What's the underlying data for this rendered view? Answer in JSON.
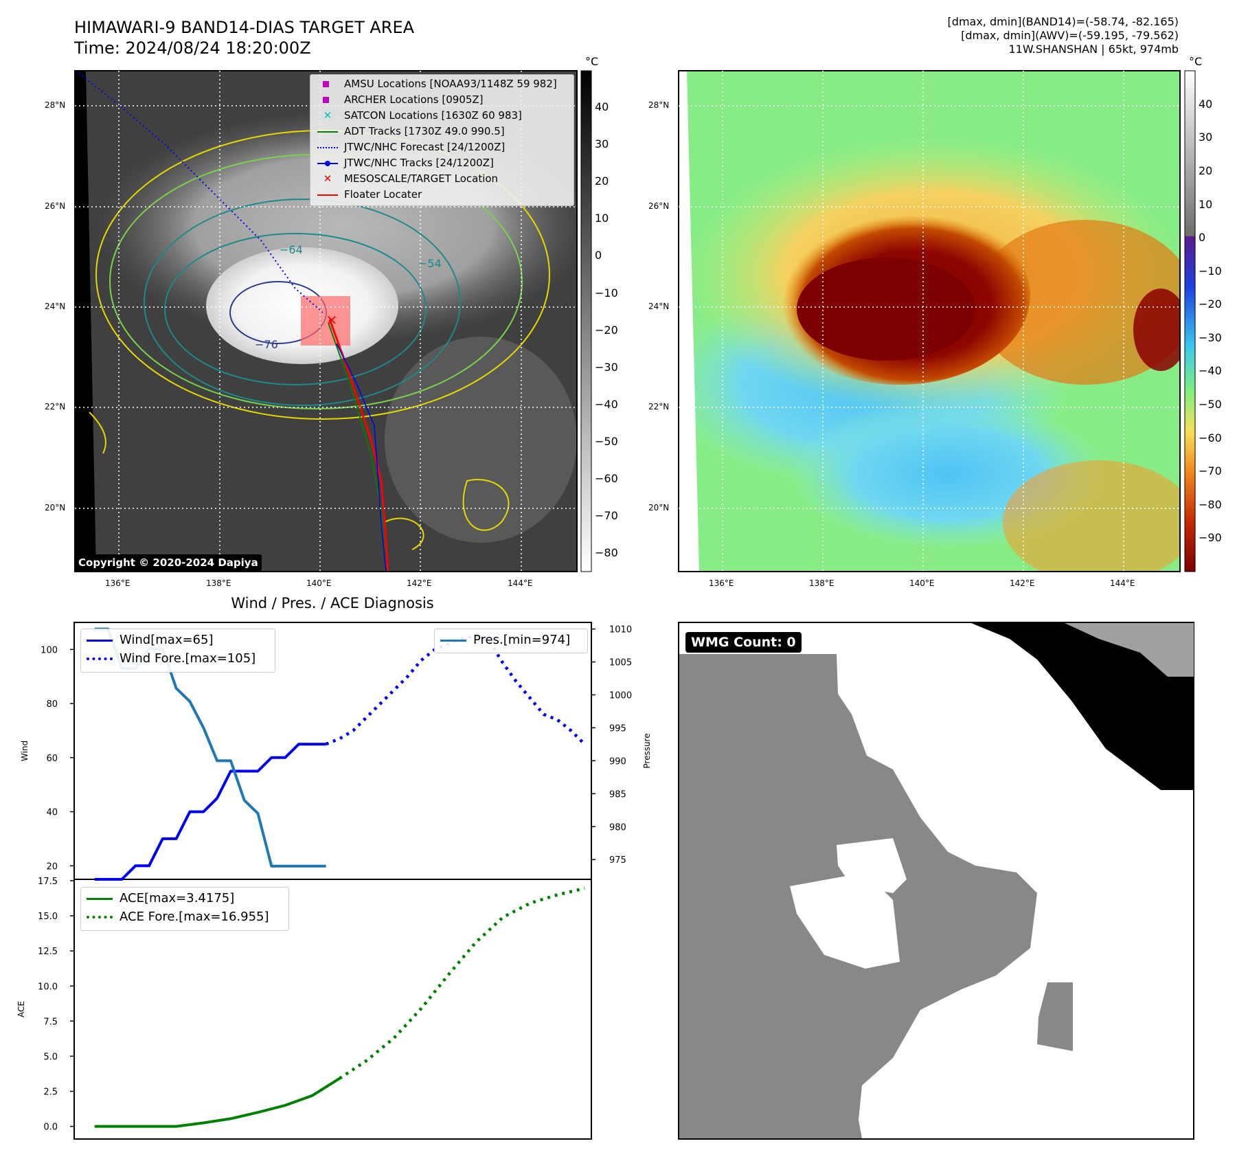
{
  "header": {
    "title": "HIMAWARI-9 BAND14-DIAS TARGET AREA",
    "time": "Time: 2024/08/24 18:20:00Z",
    "meta_line1": "[dmax, dmin](BAND14)=(-58.74, -82.165)",
    "meta_line2": "[dmax, dmin](AWV)=(-59.195, -79.562)",
    "meta_line3": "11W.SHANSHAN | 65kt, 974mb"
  },
  "map_ir": {
    "unit": "°C",
    "colorbar_ticks": [
      "40",
      "30",
      "20",
      "10",
      "0",
      "−10",
      "−20",
      "−30",
      "−40",
      "−50",
      "−60",
      "−70",
      "−80"
    ],
    "lat_labels": [
      "28°N",
      "26°N",
      "24°N",
      "22°N",
      "20°N"
    ],
    "lon_labels": [
      "136°E",
      "138°E",
      "140°E",
      "142°E",
      "144°E"
    ],
    "contour_labels": [
      "−64",
      "−54",
      "−76"
    ],
    "copyright": "Copyright © 2020-2024 Dapiya",
    "legend": [
      {
        "label": "AMSU Locations [NOAA93/1148Z 59 982]",
        "color": "#c000c0",
        "marker": "square"
      },
      {
        "label": "ARCHER Locations [0905Z]",
        "color": "#c000c0",
        "marker": "square"
      },
      {
        "label": "SATCON Locations [1630Z 60 983]",
        "color": "#00c0c0",
        "marker": "x"
      },
      {
        "label": "ADT Tracks [1730Z 49.0 990.5]",
        "color": "#008000",
        "marker": "line"
      },
      {
        "label": "JTWC/NHC Forecast [24/1200Z]",
        "color": "#0000ff",
        "marker": "dotted"
      },
      {
        "label": "JTWC/NHC Tracks [24/1200Z]",
        "color": "#0000ff",
        "marker": "line-dot"
      },
      {
        "label": "MESOSCALE/TARGET Location",
        "color": "#ff0000",
        "marker": "x"
      },
      {
        "label": "Floater Locater",
        "color": "#ff0000",
        "marker": "line"
      }
    ]
  },
  "map_awv": {
    "unit": "°C",
    "colorbar_ticks": [
      "40",
      "30",
      "20",
      "10",
      "0",
      "−10",
      "−20",
      "−30",
      "−40",
      "−50",
      "−60",
      "−70",
      "−80",
      "−90"
    ],
    "lat_labels": [
      "28°N",
      "26°N",
      "24°N",
      "22°N",
      "20°N"
    ],
    "lon_labels": [
      "136°E",
      "138°E",
      "140°E",
      "142°E",
      "144°E"
    ]
  },
  "wmg": {
    "label": "WMG Count: 0"
  },
  "chart_data": [
    {
      "type": "line",
      "title": "Wind / Pres. / ACE Diagnosis",
      "ylabel": "Wind",
      "ylabel_right": "Pressure",
      "ylim": [
        15,
        110
      ],
      "ylim_right": [
        972,
        1011
      ],
      "yticks": [
        20,
        40,
        60,
        80,
        100
      ],
      "yticks_right": [
        975,
        980,
        985,
        990,
        995,
        1000,
        1005,
        1010
      ],
      "xlim": [
        -1.5,
        36.5
      ],
      "series": [
        {
          "name": "Wind[max=65]",
          "color": "#0000ee",
          "style": "solid",
          "axis": "left",
          "x": [
            0,
            1,
            2,
            3,
            4,
            5,
            6,
            7,
            8,
            9,
            10,
            11,
            12,
            13,
            14,
            15,
            16,
            17
          ],
          "values": [
            15,
            15,
            15,
            20,
            20,
            30,
            30,
            40,
            40,
            45,
            55,
            55,
            55,
            60,
            60,
            65,
            65,
            65
          ]
        },
        {
          "name": "Wind Fore.[max=105]",
          "color": "#0000ee",
          "style": "dotted",
          "axis": "left",
          "x": [
            17,
            18,
            19,
            20,
            21,
            22,
            23,
            24,
            25,
            26,
            27,
            28,
            29,
            30,
            31,
            32,
            33,
            34,
            35,
            36
          ],
          "values": [
            65,
            67,
            70,
            75,
            80,
            85,
            90,
            96,
            100,
            102,
            104,
            105,
            103,
            95,
            88,
            82,
            76,
            74,
            70,
            65
          ]
        },
        {
          "name": "Pres.[min=974]",
          "color": "#1f77b4",
          "style": "solid",
          "axis": "right",
          "x": [
            0,
            1,
            2,
            3,
            4,
            5,
            6,
            7,
            8,
            9,
            10,
            11,
            12,
            13,
            14,
            15,
            16,
            17
          ],
          "values": [
            1010,
            1010,
            1004,
            1004,
            1007,
            1007,
            1001,
            999,
            995,
            990,
            990,
            984,
            982,
            974,
            974,
            974,
            974,
            974
          ]
        }
      ]
    },
    {
      "type": "line",
      "ylabel": "ACE",
      "ylim": [
        -0.9,
        17.6
      ],
      "yticks": [
        0.0,
        2.5,
        5.0,
        7.5,
        10.0,
        12.5,
        15.0,
        17.5
      ],
      "ytick_labels": [
        "0.0",
        "2.5",
        "5.0",
        "7.5",
        "10.0",
        "12.5",
        "15.0",
        "17.5"
      ],
      "xlim": [
        -1.5,
        36.5
      ],
      "series": [
        {
          "name": "ACE[max=3.4175]",
          "color": "#008000",
          "style": "solid",
          "x": [
            0,
            2,
            4,
            6,
            8,
            10,
            12,
            14,
            16,
            18
          ],
          "values": [
            0,
            0,
            0,
            0,
            0.25,
            0.55,
            1.0,
            1.5,
            2.2,
            3.4175
          ]
        },
        {
          "name": "ACE Fore.[max=16.955]",
          "color": "#008000",
          "style": "dotted",
          "x": [
            18,
            20,
            22,
            24,
            26,
            28,
            30,
            32,
            34,
            36
          ],
          "values": [
            3.4175,
            4.7,
            6.3,
            8.4,
            10.8,
            13.1,
            14.9,
            15.9,
            16.5,
            16.955
          ]
        }
      ]
    }
  ]
}
